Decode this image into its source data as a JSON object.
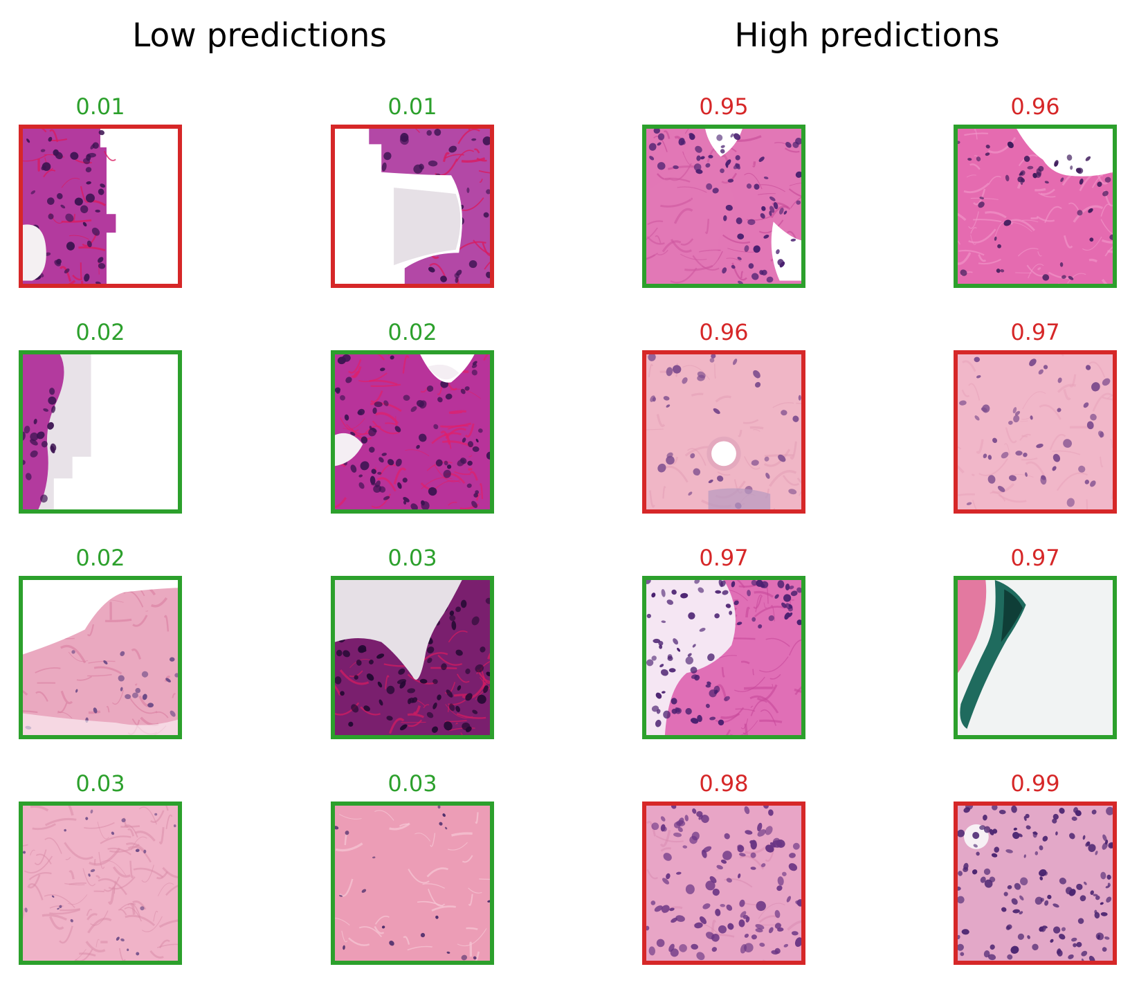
{
  "titles": {
    "low": "Low predictions",
    "high": "High predictions"
  },
  "colors": {
    "green": "#2ca02c",
    "red": "#d62728"
  },
  "low_predictions": [
    {
      "score": "0.01",
      "score_color": "green",
      "border_color": "red",
      "tissue": "epithelium-lumen-right"
    },
    {
      "score": "0.01",
      "score_color": "green",
      "border_color": "red",
      "tissue": "epithelium-lumen-left"
    },
    {
      "score": "0.02",
      "score_color": "green",
      "border_color": "green",
      "tissue": "edge-strip"
    },
    {
      "score": "0.02",
      "score_color": "green",
      "border_color": "green",
      "tissue": "dense-stroma-gland"
    },
    {
      "score": "0.02",
      "score_color": "green",
      "border_color": "green",
      "tissue": "pale-stroma-lumen"
    },
    {
      "score": "0.03",
      "score_color": "green",
      "border_color": "green",
      "tissue": "dark-epithelium-lumen"
    },
    {
      "score": "0.03",
      "score_color": "green",
      "border_color": "green",
      "tissue": "pale-stroma"
    },
    {
      "score": "0.03",
      "score_color": "green",
      "border_color": "green",
      "tissue": "pink-stroma"
    }
  ],
  "high_predictions": [
    {
      "score": "0.95",
      "score_color": "red",
      "border_color": "green",
      "tissue": "gland-stroma"
    },
    {
      "score": "0.96",
      "score_color": "red",
      "border_color": "green",
      "tissue": "stroma-lumen-edge"
    },
    {
      "score": "0.96",
      "score_color": "red",
      "border_color": "red",
      "tissue": "pale-stroma-vessel"
    },
    {
      "score": "0.97",
      "score_color": "red",
      "border_color": "red",
      "tissue": "pale-stroma-nuclei"
    },
    {
      "score": "0.97",
      "score_color": "red",
      "border_color": "green",
      "tissue": "glandular-cluster"
    },
    {
      "score": "0.97",
      "score_color": "red",
      "border_color": "green",
      "tissue": "ink-artifact"
    },
    {
      "score": "0.98",
      "score_color": "red",
      "border_color": "red",
      "tissue": "dense-cellular"
    },
    {
      "score": "0.99",
      "score_color": "red",
      "border_color": "red",
      "tissue": "inflammatory-cellular"
    }
  ]
}
